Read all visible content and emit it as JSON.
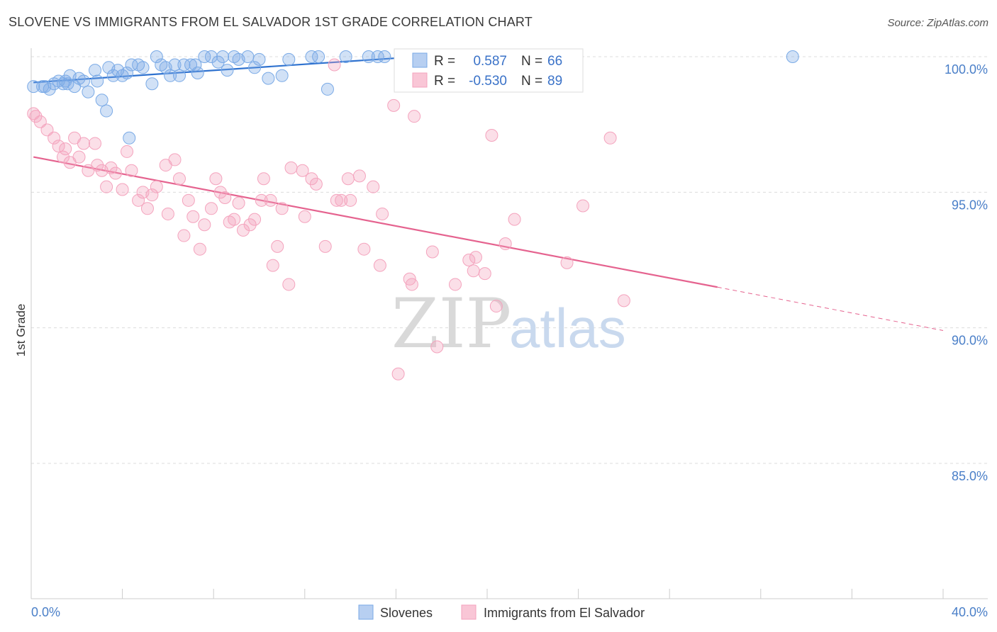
{
  "title": "SLOVENE VS IMMIGRANTS FROM EL SALVADOR 1ST GRADE CORRELATION CHART",
  "source": "Source: ZipAtlas.com",
  "watermark": {
    "zip": "ZIP",
    "atlas": "atlas"
  },
  "chart_data": {
    "type": "scatter",
    "title": "SLOVENE VS IMMIGRANTS FROM EL SALVADOR 1ST GRADE CORRELATION CHART",
    "xlabel": "",
    "ylabel": "1st Grade",
    "xlim": [
      0,
      40
    ],
    "ylim": [
      80.5,
      101.2
    ],
    "x_tick_labels": [
      "0.0%",
      "40.0%"
    ],
    "y_ticks": [
      100,
      95,
      90,
      85
    ],
    "y_tick_labels": [
      "100.0%",
      "95.0%",
      "90.0%",
      "85.0%"
    ],
    "grid": true,
    "legend_position": "top-center",
    "colors": {
      "slovenes": "#7aaae6",
      "salvador": "#f4a3bd",
      "slovenes_line": "#2f72cf",
      "salvador_line": "#e5638f",
      "tick_text": "#4a7fc8"
    },
    "stats": {
      "r_label": "R =",
      "n_label": "N =",
      "slovenes": {
        "r": "0.587",
        "n": "66"
      },
      "salvador": {
        "r": "-0.530",
        "n": "89"
      }
    },
    "series": [
      {
        "name": "Slovenes",
        "trend": {
          "x": [
            0.1,
            20.5
          ],
          "y": [
            99.05,
            100.2
          ]
        },
        "points": [
          [
            0.1,
            98.9
          ],
          [
            0.5,
            98.9
          ],
          [
            0.8,
            98.8
          ],
          [
            1.0,
            99.0
          ],
          [
            1.2,
            99.1
          ],
          [
            1.4,
            99.0
          ],
          [
            1.5,
            99.1
          ],
          [
            1.7,
            99.3
          ],
          [
            1.9,
            98.9
          ],
          [
            2.1,
            99.2
          ],
          [
            2.3,
            99.1
          ],
          [
            2.5,
            98.7
          ],
          [
            2.9,
            99.1
          ],
          [
            2.8,
            99.5
          ],
          [
            3.1,
            98.4
          ],
          [
            3.3,
            98.0
          ],
          [
            3.4,
            99.6
          ],
          [
            3.6,
            99.3
          ],
          [
            3.8,
            99.5
          ],
          [
            4.0,
            99.3
          ],
          [
            4.2,
            99.4
          ],
          [
            4.4,
            99.7
          ],
          [
            4.7,
            99.7
          ],
          [
            4.9,
            99.6
          ],
          [
            5.3,
            99.0
          ],
          [
            5.5,
            100.0
          ],
          [
            5.7,
            99.7
          ],
          [
            5.9,
            99.6
          ],
          [
            6.1,
            99.3
          ],
          [
            6.3,
            99.7
          ],
          [
            6.5,
            99.3
          ],
          [
            6.7,
            99.7
          ],
          [
            7.0,
            99.7
          ],
          [
            7.2,
            99.7
          ],
          [
            7.3,
            99.4
          ],
          [
            7.6,
            100.0
          ],
          [
            7.9,
            100.0
          ],
          [
            8.2,
            99.8
          ],
          [
            8.4,
            100.0
          ],
          [
            8.6,
            99.5
          ],
          [
            8.9,
            100.0
          ],
          [
            9.1,
            99.9
          ],
          [
            9.5,
            100.0
          ],
          [
            9.8,
            99.6
          ],
          [
            10.0,
            99.9
          ],
          [
            10.4,
            99.2
          ],
          [
            11.0,
            99.3
          ],
          [
            11.3,
            99.9
          ],
          [
            12.3,
            100.0
          ],
          [
            12.6,
            100.0
          ],
          [
            13.0,
            98.8
          ],
          [
            13.8,
            100.0
          ],
          [
            14.8,
            100.0
          ],
          [
            15.2,
            100.0
          ],
          [
            15.5,
            100.0
          ],
          [
            16.3,
            100.0
          ],
          [
            17.7,
            100.0
          ],
          [
            18.6,
            100.0
          ],
          [
            19.3,
            100.0
          ],
          [
            21.7,
            100.0
          ],
          [
            22.3,
            100.0
          ],
          [
            23.1,
            100.0
          ],
          [
            33.4,
            100.0
          ],
          [
            4.3,
            97.0
          ],
          [
            0.6,
            98.9
          ],
          [
            1.6,
            99.0
          ]
        ]
      },
      {
        "name": "Immigrants from El Salvador",
        "trend": {
          "x": [
            0.1,
            30.1
          ],
          "y": [
            96.3,
            91.5
          ]
        },
        "trend_dashed": {
          "x": [
            30.1,
            40.0
          ],
          "y": [
            91.5,
            89.9
          ]
        },
        "points": [
          [
            0.2,
            97.8
          ],
          [
            0.4,
            97.6
          ],
          [
            0.7,
            97.3
          ],
          [
            1.0,
            97.0
          ],
          [
            1.2,
            96.7
          ],
          [
            1.4,
            96.3
          ],
          [
            1.5,
            96.6
          ],
          [
            1.7,
            96.1
          ],
          [
            1.9,
            97.0
          ],
          [
            2.1,
            96.3
          ],
          [
            2.3,
            96.8
          ],
          [
            2.5,
            95.8
          ],
          [
            2.8,
            96.8
          ],
          [
            2.9,
            96.0
          ],
          [
            3.1,
            95.8
          ],
          [
            3.3,
            95.2
          ],
          [
            3.5,
            95.9
          ],
          [
            3.7,
            95.7
          ],
          [
            4.0,
            95.1
          ],
          [
            4.2,
            96.5
          ],
          [
            4.4,
            95.8
          ],
          [
            4.7,
            94.7
          ],
          [
            4.9,
            95.0
          ],
          [
            5.1,
            94.4
          ],
          [
            5.3,
            94.9
          ],
          [
            5.5,
            95.2
          ],
          [
            5.9,
            96.0
          ],
          [
            6.0,
            94.2
          ],
          [
            6.3,
            96.2
          ],
          [
            6.5,
            95.5
          ],
          [
            6.7,
            93.4
          ],
          [
            6.9,
            94.7
          ],
          [
            7.1,
            94.1
          ],
          [
            7.4,
            92.9
          ],
          [
            7.6,
            93.8
          ],
          [
            7.9,
            94.4
          ],
          [
            8.1,
            95.5
          ],
          [
            8.3,
            95.0
          ],
          [
            8.5,
            94.8
          ],
          [
            8.7,
            93.9
          ],
          [
            8.9,
            94.0
          ],
          [
            9.1,
            94.6
          ],
          [
            9.3,
            93.6
          ],
          [
            9.6,
            93.8
          ],
          [
            9.8,
            94.0
          ],
          [
            10.1,
            94.7
          ],
          [
            10.2,
            95.5
          ],
          [
            10.5,
            94.7
          ],
          [
            10.6,
            92.3
          ],
          [
            10.8,
            93.0
          ],
          [
            11.0,
            94.4
          ],
          [
            11.3,
            91.6
          ],
          [
            11.4,
            95.9
          ],
          [
            11.9,
            95.8
          ],
          [
            12.0,
            94.1
          ],
          [
            12.3,
            95.5
          ],
          [
            12.5,
            95.3
          ],
          [
            12.9,
            93.0
          ],
          [
            13.3,
            99.7
          ],
          [
            13.4,
            94.7
          ],
          [
            13.6,
            94.7
          ],
          [
            13.9,
            95.5
          ],
          [
            14.0,
            94.7
          ],
          [
            14.4,
            95.6
          ],
          [
            14.6,
            92.9
          ],
          [
            15.0,
            95.2
          ],
          [
            15.3,
            92.3
          ],
          [
            15.4,
            94.2
          ],
          [
            15.9,
            98.2
          ],
          [
            16.1,
            88.3
          ],
          [
            16.6,
            91.8
          ],
          [
            16.7,
            91.6
          ],
          [
            16.8,
            97.8
          ],
          [
            17.6,
            92.8
          ],
          [
            17.8,
            89.3
          ],
          [
            18.6,
            91.6
          ],
          [
            19.2,
            92.5
          ],
          [
            19.4,
            92.1
          ],
          [
            19.5,
            92.6
          ],
          [
            19.9,
            92.0
          ],
          [
            20.2,
            97.1
          ],
          [
            20.4,
            90.8
          ],
          [
            20.8,
            93.1
          ],
          [
            21.2,
            94.0
          ],
          [
            23.5,
            92.4
          ],
          [
            24.2,
            94.5
          ],
          [
            25.4,
            97.0
          ],
          [
            26.0,
            91.0
          ],
          [
            0.1,
            97.9
          ]
        ]
      }
    ]
  },
  "bottom_legend": [
    "Slovenes",
    "Immigrants from El Salvador"
  ]
}
